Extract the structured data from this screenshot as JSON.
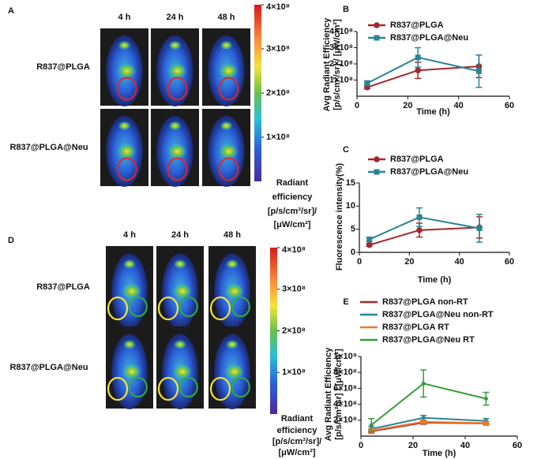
{
  "image_panels": [
    {
      "panel_label": "A",
      "columns": [
        "4 h",
        "24 h",
        "48 h"
      ],
      "rows": [
        "R837@PLGA",
        "R837@PLGA@Neu"
      ],
      "colorbar": {
        "lim": [
          0,
          400000000
        ],
        "ticks": [
          {
            "value": 400000000,
            "label": "4×10⁸"
          },
          {
            "value": 300000000,
            "label": "3×10⁸"
          },
          {
            "value": 200000000,
            "label": "2×10⁸"
          },
          {
            "value": 100000000,
            "label": "1×10⁸"
          }
        ],
        "label": [
          "Radiant",
          "efficiency",
          "[p/s/cm²/sr]/",
          "[μW/cm²]"
        ]
      }
    },
    {
      "panel_label": "D",
      "columns": [
        "4 h",
        "24 h",
        "48 h"
      ],
      "rows": [
        "R837@PLGA",
        "R837@PLGA@Neu"
      ],
      "colorbar": {
        "lim": [
          0,
          400000000
        ],
        "ticks": [
          {
            "value": 400000000,
            "label": "4×10⁸"
          },
          {
            "value": 300000000,
            "label": "3×10⁸"
          },
          {
            "value": 200000000,
            "label": "2×10⁸"
          },
          {
            "value": 100000000,
            "label": "1×10⁸"
          }
        ],
        "label": [
          "Radiant",
          "efficiency",
          "[p/s/cm²/sr]/",
          "[μW/cm²]"
        ]
      }
    }
  ],
  "chart_data": [
    {
      "type": "line",
      "panel_label": "B",
      "x_label": "Time (h)",
      "y_label": [
        "Avg Radiant Efficiency",
        "[p/s/cm²/sr] / [μW/cm²]"
      ],
      "x": [
        4,
        24,
        48
      ],
      "xlim": [
        0,
        60
      ],
      "xticks": [
        0,
        20,
        40,
        60
      ],
      "ylim": [
        0,
        400000000
      ],
      "yticks": [
        {
          "value": 100000000,
          "label": "1×10⁸"
        },
        {
          "value": 200000000,
          "label": "2×10⁸"
        },
        {
          "value": 300000000,
          "label": "3×10⁸"
        },
        {
          "value": 400000000,
          "label": "4×10⁸"
        }
      ],
      "series": [
        {
          "name": "R837@PLGA",
          "color": "#a3282c",
          "marker": "circle",
          "values": [
            55000000,
            160000000,
            185000000
          ],
          "errors": [
            10000000,
            50000000,
            70000000
          ]
        },
        {
          "name": "R837@PLGA@Neu",
          "color": "#2a8496",
          "marker": "square",
          "values": [
            80000000,
            240000000,
            155000000
          ],
          "errors": [
            15000000,
            60000000,
            100000000
          ]
        }
      ]
    },
    {
      "type": "line",
      "panel_label": "C",
      "x_label": "Time (h)",
      "y_label": [
        "Fluorescence intensity(%)"
      ],
      "x": [
        4,
        24,
        48
      ],
      "xlim": [
        0,
        60
      ],
      "xticks": [
        0,
        20,
        40,
        60
      ],
      "ylim": [
        0,
        15
      ],
      "yticks": [
        0,
        5,
        10,
        15
      ],
      "series": [
        {
          "name": "R837@PLGA",
          "color": "#a3282c",
          "marker": "circle",
          "values": [
            1.6,
            4.8,
            5.4
          ],
          "errors": [
            0.3,
            1.5,
            2.3
          ]
        },
        {
          "name": "R837@PLGA@Neu",
          "color": "#2a8496",
          "marker": "square",
          "values": [
            2.8,
            7.6,
            5.2
          ],
          "errors": [
            0.5,
            2.0,
            3.0
          ]
        }
      ]
    },
    {
      "type": "line",
      "panel_label": "E",
      "x_label": "Time (h)",
      "y_label": [
        "Avg Radiant Efficiency",
        "[p/s/cm²/sr] / [μW/cm²]"
      ],
      "x": [
        4,
        24,
        48
      ],
      "xlim": [
        0,
        60
      ],
      "xticks": [
        0,
        20,
        40,
        60
      ],
      "ylim": [
        0,
        1000000000
      ],
      "yticks": [
        {
          "value": 200000000,
          "label": "2×10⁸"
        },
        {
          "value": 400000000,
          "label": "4×10⁸"
        },
        {
          "value": 600000000,
          "label": "6×10⁸"
        },
        {
          "value": 800000000,
          "label": "8×10⁸"
        },
        {
          "value": 1000000000,
          "label": "1×10⁹"
        }
      ],
      "series": [
        {
          "name": "R837@PLGA non-RT",
          "color": "#a3282c",
          "values": [
            60000000,
            170000000,
            160000000
          ],
          "errors": [
            20000000,
            20000000,
            20000000
          ]
        },
        {
          "name": "R837@PLGA@Neu non-RT",
          "color": "#2a8496",
          "values": [
            90000000,
            230000000,
            190000000
          ],
          "errors": [
            30000000,
            30000000,
            30000000
          ]
        },
        {
          "name": "R837@PLGA RT",
          "color": "#f07a2a",
          "values": [
            70000000,
            180000000,
            165000000
          ],
          "errors": [
            20000000,
            20000000,
            20000000
          ]
        },
        {
          "name": "R837@PLGA@Neu RT",
          "color": "#3a9a3a",
          "values": [
            140000000,
            660000000,
            470000000
          ],
          "errors": [
            80000000,
            170000000,
            80000000
          ]
        }
      ]
    }
  ]
}
